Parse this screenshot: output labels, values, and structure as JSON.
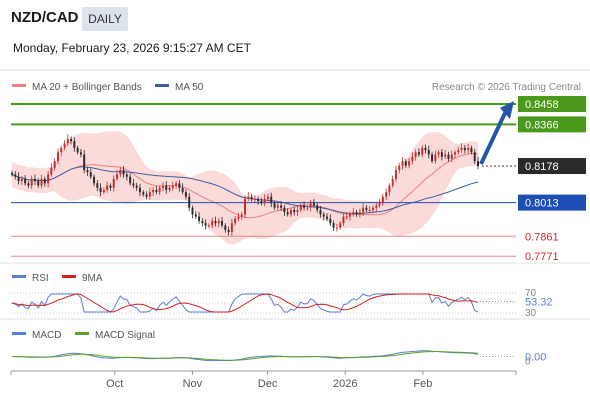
{
  "header": {
    "symbol": "NZD/CAD",
    "timeframe": "DAILY",
    "timestamp": "Monday, February 23, 2026 9:15:27 AM CET"
  },
  "legend": {
    "ma20": "MA 20 + Bollinger Bands",
    "ma50": "MA 50",
    "rsi": "RSI",
    "rsi_ma": "9MA",
    "macd": "MACD",
    "macd_signal": "MACD Signal"
  },
  "credit": "Research © 2026 Trading Central",
  "colors": {
    "bull": "#cc2a2a",
    "bear": "#2a2a2a",
    "ma20": "#f08080",
    "ma50": "#3c5fa0",
    "bb_fill": "#fbd6d6",
    "resistance": "#4a9a1c",
    "pivot": "#1e4eb5",
    "support": "#e88888",
    "arrow": "#2456a8",
    "rsi": "#5a7fd6",
    "rsi_ma": "#d42020",
    "macd": "#5a7fd6",
    "macd_signal": "#5aa02a"
  },
  "chart_data": [
    {
      "type": "candlestick",
      "x_range": [
        "2025-08-21",
        "2026-02-23"
      ],
      "ylim": [
        0.7745,
        0.8485
      ],
      "x_ticks": [
        "Oct",
        "Nov",
        "Dec",
        "2026",
        "Feb"
      ],
      "levels": [
        {
          "label": "0.8458",
          "value": 0.8458,
          "kind": "resistance"
        },
        {
          "label": "0.8366",
          "value": 0.8366,
          "kind": "resistance"
        },
        {
          "label": "0.8013",
          "value": 0.8013,
          "kind": "pivot"
        },
        {
          "label": "0.7861",
          "value": 0.7861,
          "kind": "support"
        },
        {
          "label": "0.7771",
          "value": 0.7771,
          "kind": "support"
        }
      ],
      "last_price": {
        "label": "0.8178",
        "value": 0.8178
      },
      "closes": [
        0.814,
        0.813,
        0.811,
        0.812,
        0.81,
        0.809,
        0.812,
        0.811,
        0.809,
        0.812,
        0.81,
        0.814,
        0.817,
        0.82,
        0.824,
        0.826,
        0.828,
        0.83,
        0.829,
        0.826,
        0.824,
        0.823,
        0.816,
        0.815,
        0.813,
        0.81,
        0.808,
        0.806,
        0.807,
        0.809,
        0.808,
        0.812,
        0.814,
        0.816,
        0.814,
        0.813,
        0.81,
        0.809,
        0.808,
        0.806,
        0.805,
        0.804,
        0.806,
        0.807,
        0.806,
        0.808,
        0.809,
        0.807,
        0.808,
        0.809,
        0.81,
        0.808,
        0.806,
        0.804,
        0.799,
        0.796,
        0.795,
        0.793,
        0.792,
        0.791,
        0.791,
        0.793,
        0.792,
        0.793,
        0.791,
        0.789,
        0.788,
        0.792,
        0.794,
        0.795,
        0.796,
        0.803,
        0.804,
        0.803,
        0.803,
        0.802,
        0.801,
        0.803,
        0.804,
        0.801,
        0.799,
        0.8,
        0.799,
        0.797,
        0.796,
        0.798,
        0.797,
        0.798,
        0.8,
        0.799,
        0.799,
        0.801,
        0.8,
        0.798,
        0.796,
        0.795,
        0.794,
        0.792,
        0.79,
        0.79,
        0.792,
        0.795,
        0.795,
        0.796,
        0.797,
        0.796,
        0.797,
        0.799,
        0.798,
        0.798,
        0.799,
        0.8,
        0.801,
        0.804,
        0.806,
        0.809,
        0.812,
        0.816,
        0.818,
        0.82,
        0.818,
        0.82,
        0.822,
        0.824,
        0.823,
        0.826,
        0.825,
        0.823,
        0.82,
        0.823,
        0.824,
        0.822,
        0.823,
        0.821,
        0.823,
        0.824,
        0.825,
        0.826,
        0.825,
        0.826,
        0.824,
        0.82,
        0.8178
      ]
    },
    {
      "type": "line",
      "title": "RSI",
      "ylim": [
        30,
        70
      ],
      "y_ticks": [
        70,
        50,
        30
      ],
      "last_value": 53.32,
      "last_label": "53.32"
    },
    {
      "type": "line",
      "title": "MACD",
      "ylim": [
        -0.015,
        0.015
      ],
      "y_ticks": [
        0
      ],
      "last_value": 0.0,
      "last_label": "0.00"
    }
  ]
}
